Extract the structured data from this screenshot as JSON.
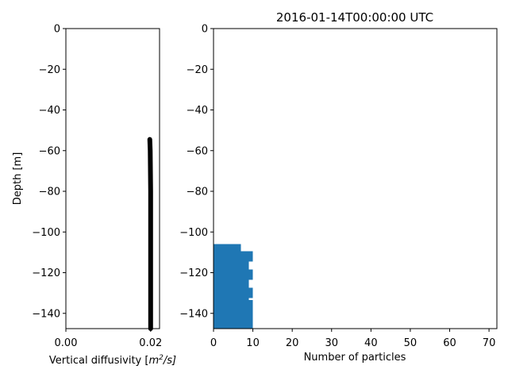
{
  "figure": {
    "title": "2016-01-14T00:00:00 UTC"
  },
  "chart_data": [
    {
      "type": "line",
      "xlabel": "Vertical diffusivity [m²/s]",
      "xlabel_text": "Vertical diffusivity [",
      "xlabel_unit_m": "m",
      "xlabel_unit_exp": "2",
      "xlabel_unit_rest": "/s]",
      "ylabel": "Depth [m]",
      "xlim": [
        0.0,
        0.0221
      ],
      "ylim": [
        -147.5,
        0
      ],
      "x_ticks": [
        {
          "v": 0.0,
          "label": "0.00"
        },
        {
          "v": 0.02,
          "label": "0.02"
        }
      ],
      "y_ticks": [
        0,
        -20,
        -40,
        -60,
        -80,
        -100,
        -120,
        -140
      ],
      "series": [
        {
          "color": "#000000",
          "x": [
            0.0198,
            0.0199,
            0.02,
            0.02,
            0.02,
            0.02,
            0.02
          ],
          "y": [
            -54.5,
            -60,
            -80,
            -100,
            -120,
            -140,
            -147.5
          ]
        }
      ],
      "grid": false
    },
    {
      "type": "bar",
      "orientation": "horizontal",
      "title": "2016-01-14T00:00:00 UTC",
      "xlabel": "Number of particles",
      "ylabel": "",
      "xlim": [
        0,
        72
      ],
      "ylim": [
        -147.5,
        0
      ],
      "x_ticks": [
        0,
        10,
        20,
        30,
        40,
        50,
        60,
        70
      ],
      "y_ticks": [
        0,
        -20,
        -40,
        -60,
        -80,
        -100,
        -120,
        -140
      ],
      "bar_color": "#1f77b4",
      "bins": [
        {
          "top": -106.0,
          "bottom": -109.5,
          "count": 7
        },
        {
          "top": -109.5,
          "bottom": -114.5,
          "count": 10
        },
        {
          "top": -114.5,
          "bottom": -118.5,
          "count": 9
        },
        {
          "top": -118.5,
          "bottom": -123.5,
          "count": 10
        },
        {
          "top": -123.5,
          "bottom": -127.5,
          "count": 9
        },
        {
          "top": -127.5,
          "bottom": -132.5,
          "count": 10
        },
        {
          "top": -132.5,
          "bottom": -133.5,
          "count": 9
        },
        {
          "top": -133.5,
          "bottom": -147.5,
          "count": 10
        }
      ],
      "grid": false
    }
  ]
}
